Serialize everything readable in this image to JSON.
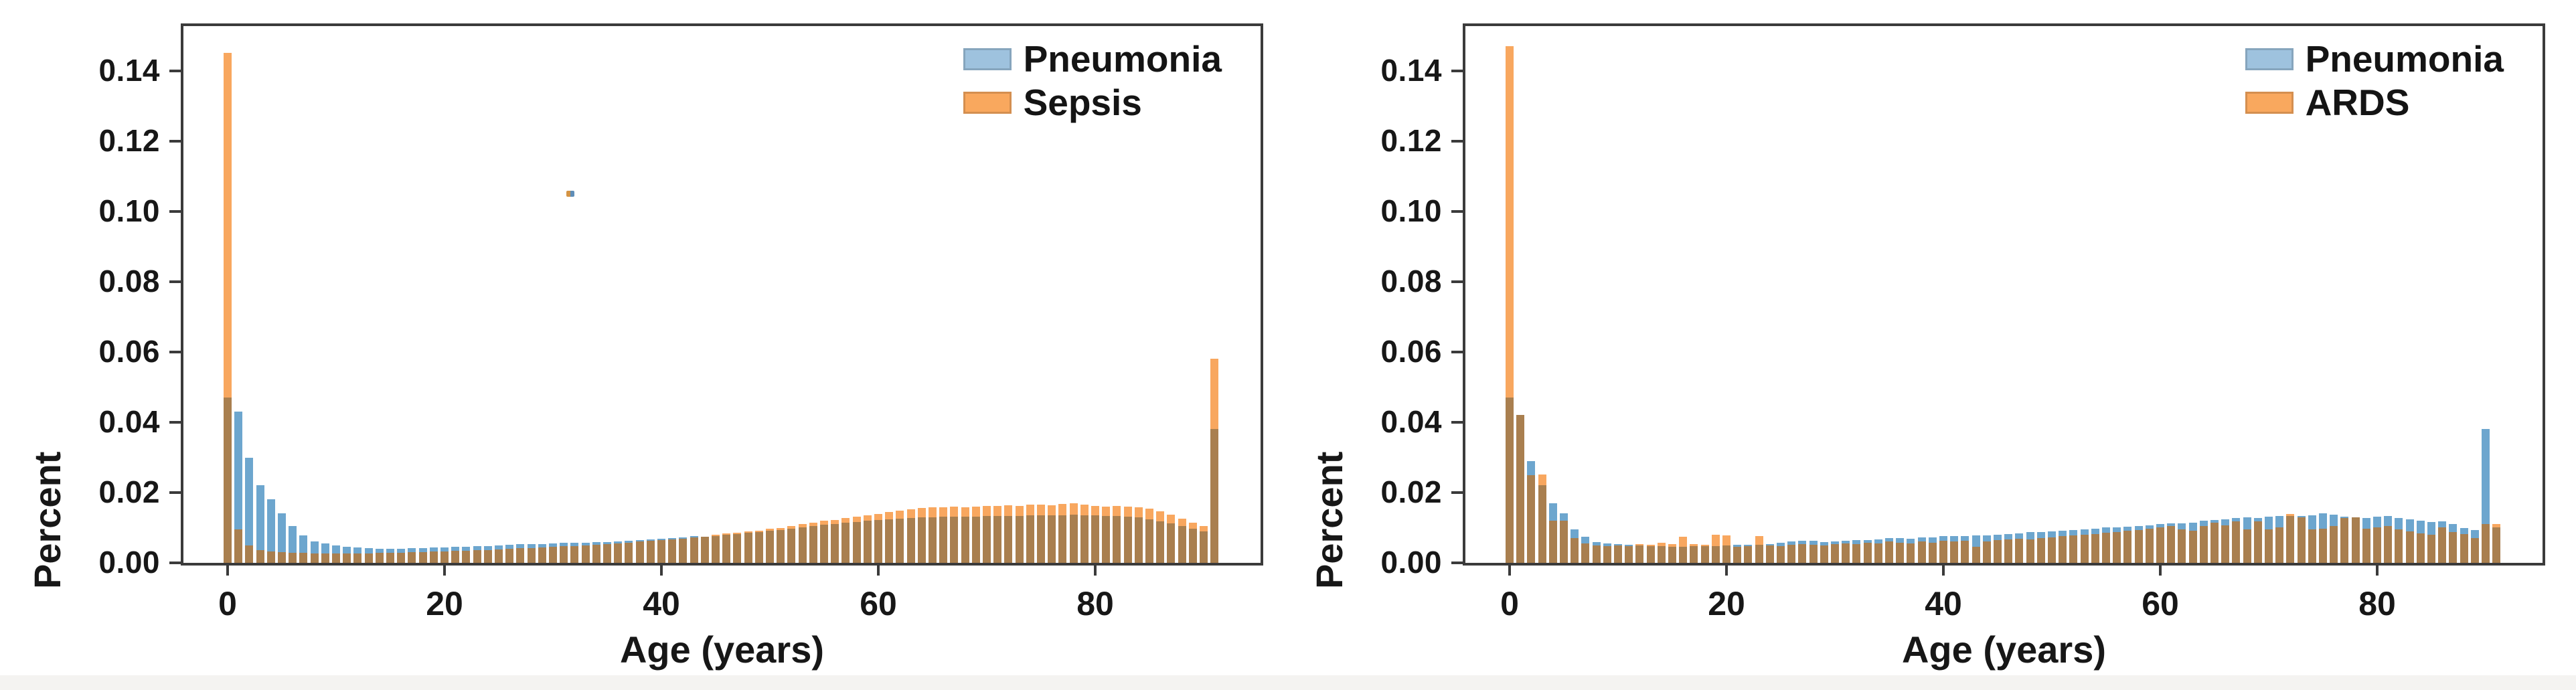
{
  "page": {
    "background_color": "#ffffff",
    "bottom_strip_color": "#f4f3f1",
    "frame_color": "#3b3b3b",
    "text_color": "#171717"
  },
  "chart_data": [
    {
      "type": "bar",
      "title": "",
      "xlabel": "Age (years)",
      "ylabel": "Percent",
      "x_start": 0,
      "x_step": 1,
      "xticks": [
        0,
        20,
        40,
        60,
        80
      ],
      "yticks": [
        0.0,
        0.02,
        0.04,
        0.06,
        0.08,
        0.1,
        0.12,
        0.14
      ],
      "xlim": [
        -4,
        95
      ],
      "ylim": [
        0,
        0.153
      ],
      "grid": false,
      "legend_position": "upper right",
      "overlap_color": "#a97f4f",
      "series": [
        {
          "name": "Pneumonia",
          "color": "#6da6ce",
          "swatch_color": "#9ec2de",
          "values": [
            0.047,
            0.043,
            0.03,
            0.022,
            0.018,
            0.014,
            0.0105,
            0.0078,
            0.0062,
            0.0055,
            0.005,
            0.0046,
            0.0044,
            0.0042,
            0.004,
            0.004,
            0.0041,
            0.0042,
            0.0043,
            0.0044,
            0.0044,
            0.0045,
            0.0046,
            0.0047,
            0.0048,
            0.005,
            0.0051,
            0.0052,
            0.0053,
            0.0054,
            0.0055,
            0.0056,
            0.0057,
            0.0058,
            0.0059,
            0.006,
            0.0062,
            0.0063,
            0.0064,
            0.0066,
            0.0068,
            0.007,
            0.0072,
            0.0073,
            0.0075,
            0.0077,
            0.008,
            0.0082,
            0.0085,
            0.0088,
            0.0091,
            0.0094,
            0.0097,
            0.01,
            0.0104,
            0.0108,
            0.0111,
            0.0114,
            0.0117,
            0.012,
            0.0122,
            0.0124,
            0.0126,
            0.0128,
            0.0129,
            0.013,
            0.0131,
            0.0131,
            0.0132,
            0.0132,
            0.0133,
            0.0133,
            0.0134,
            0.0134,
            0.0135,
            0.0135,
            0.0136,
            0.0136,
            0.0137,
            0.0136,
            0.0135,
            0.0134,
            0.0133,
            0.0131,
            0.0129,
            0.0124,
            0.0118,
            0.0112,
            0.0105,
            0.0098,
            0.009,
            0.038
          ]
        },
        {
          "name": "Sepsis",
          "color": "#f8a75f",
          "swatch_color": "#f9a85e",
          "values": [
            0.145,
            0.0095,
            0.005,
            0.0036,
            0.0032,
            0.003,
            0.0028,
            0.0028,
            0.0027,
            0.0027,
            0.0027,
            0.0027,
            0.0027,
            0.0027,
            0.0028,
            0.0028,
            0.0029,
            0.003,
            0.0031,
            0.0032,
            0.0033,
            0.0034,
            0.0035,
            0.0036,
            0.0037,
            0.0038,
            0.004,
            0.0041,
            0.0042,
            0.0044,
            0.0045,
            0.0047,
            0.0048,
            0.005,
            0.0052,
            0.0054,
            0.0056,
            0.0058,
            0.006,
            0.0062,
            0.0064,
            0.0067,
            0.0069,
            0.0072,
            0.0075,
            0.0078,
            0.0081,
            0.0084,
            0.0088,
            0.0092,
            0.0096,
            0.01,
            0.0105,
            0.011,
            0.0114,
            0.0119,
            0.0123,
            0.0128,
            0.0132,
            0.0136,
            0.014,
            0.0144,
            0.0148,
            0.0152,
            0.0155,
            0.0158,
            0.0158,
            0.016,
            0.0159,
            0.016,
            0.0161,
            0.0162,
            0.0164,
            0.0163,
            0.0165,
            0.0166,
            0.0165,
            0.0168,
            0.017,
            0.0166,
            0.0162,
            0.016,
            0.0161,
            0.0159,
            0.0158,
            0.0155,
            0.0146,
            0.0136,
            0.0126,
            0.0116,
            0.0105,
            0.058
          ]
        }
      ]
    },
    {
      "type": "bar",
      "title": "",
      "xlabel": "Age (years)",
      "ylabel": "Percent",
      "x_start": 0,
      "x_step": 1,
      "xticks": [
        0,
        20,
        40,
        60,
        80
      ],
      "yticks": [
        0.0,
        0.02,
        0.04,
        0.06,
        0.08,
        0.1,
        0.12,
        0.14
      ],
      "xlim": [
        -4,
        95
      ],
      "ylim": [
        0,
        0.153
      ],
      "grid": false,
      "legend_position": "upper right",
      "overlap_color": "#a97f4f",
      "series": [
        {
          "name": "Pneumonia",
          "color": "#6da6ce",
          "swatch_color": "#9ec2de",
          "values": [
            0.047,
            0.042,
            0.029,
            0.022,
            0.017,
            0.014,
            0.0095,
            0.0075,
            0.006,
            0.0056,
            0.0052,
            0.005,
            0.0049,
            0.0048,
            0.0047,
            0.0046,
            0.0046,
            0.0047,
            0.0048,
            0.0048,
            0.0049,
            0.005,
            0.005,
            0.0051,
            0.0052,
            0.0058,
            0.0062,
            0.0064,
            0.0063,
            0.006,
            0.0062,
            0.0064,
            0.0065,
            0.0066,
            0.0068,
            0.007,
            0.0072,
            0.007,
            0.0072,
            0.0074,
            0.0075,
            0.0076,
            0.0076,
            0.0077,
            0.0078,
            0.008,
            0.0082,
            0.0084,
            0.0086,
            0.0088,
            0.009,
            0.0092,
            0.0094,
            0.0096,
            0.0098,
            0.01,
            0.0102,
            0.0104,
            0.0106,
            0.0108,
            0.011,
            0.0112,
            0.0114,
            0.0115,
            0.012,
            0.0122,
            0.0124,
            0.0128,
            0.013,
            0.0128,
            0.0132,
            0.0133,
            0.0134,
            0.0132,
            0.0136,
            0.0142,
            0.0138,
            0.0132,
            0.013,
            0.0128,
            0.013,
            0.0132,
            0.0128,
            0.0124,
            0.012,
            0.0116,
            0.0118,
            0.011,
            0.01,
            0.0092,
            0.038,
            0.01
          ]
        },
        {
          "name": "ARDS",
          "color": "#f8a75f",
          "swatch_color": "#f9a85e",
          "values": [
            0.147,
            0.042,
            0.025,
            0.025,
            0.012,
            0.012,
            0.007,
            0.0056,
            0.005,
            0.0048,
            0.005,
            0.0048,
            0.0052,
            0.005,
            0.0056,
            0.0054,
            0.0075,
            0.0052,
            0.005,
            0.008,
            0.0078,
            0.0045,
            0.0048,
            0.0075,
            0.005,
            0.0048,
            0.0052,
            0.0054,
            0.0052,
            0.005,
            0.0054,
            0.0056,
            0.0054,
            0.0058,
            0.0056,
            0.006,
            0.0058,
            0.0056,
            0.006,
            0.0058,
            0.0062,
            0.006,
            0.0062,
            0.0045,
            0.006,
            0.0064,
            0.0066,
            0.0068,
            0.0066,
            0.007,
            0.0072,
            0.0076,
            0.0078,
            0.008,
            0.0082,
            0.0085,
            0.0088,
            0.0092,
            0.0094,
            0.0098,
            0.01,
            0.0104,
            0.0096,
            0.0092,
            0.0104,
            0.0114,
            0.0106,
            0.0118,
            0.0096,
            0.0118,
            0.0096,
            0.01,
            0.014,
            0.013,
            0.0096,
            0.0098,
            0.0105,
            0.0128,
            0.013,
            0.0098,
            0.01,
            0.0104,
            0.0096,
            0.009,
            0.0084,
            0.008,
            0.01,
            0.0088,
            0.0082,
            0.007,
            0.011,
            0.011
          ]
        }
      ]
    }
  ]
}
